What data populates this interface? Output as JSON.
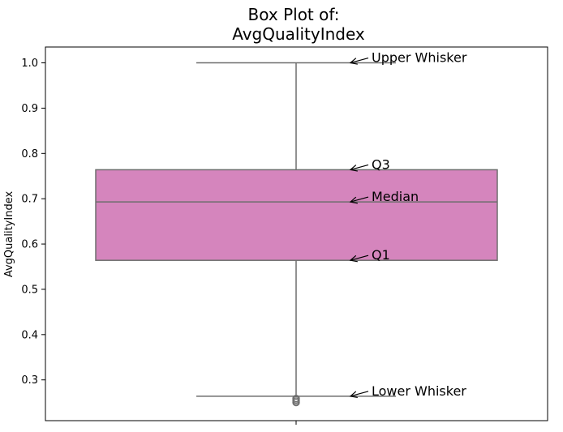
{
  "chart_data": {
    "type": "box",
    "title_line1": "Box Plot of:",
    "title_line2": "AvgQualityIndex",
    "xlabel": "",
    "ylabel": "AvgQualityIndex",
    "ylim": [
      0.21,
      1.035
    ],
    "yticks": [
      "0.3",
      "0.4",
      "0.5",
      "0.6",
      "0.7",
      "0.8",
      "0.9",
      "1.0"
    ],
    "box": {
      "whisker_low": 0.264,
      "q1": 0.564,
      "median": 0.693,
      "q3": 0.764,
      "whisker_high": 1.0,
      "outliers": [
        0.25,
        0.253,
        0.256,
        0.259
      ],
      "color": "#d585bd",
      "line_color": "#6e6e6e"
    },
    "annotations": [
      {
        "label": "Upper Whisker",
        "value": 1.0
      },
      {
        "label": "Q3",
        "value": 0.764
      },
      {
        "label": "Median",
        "value": 0.693
      },
      {
        "label": "Q1",
        "value": 0.564
      },
      {
        "label": "Lower Whisker",
        "value": 0.264
      }
    ]
  }
}
